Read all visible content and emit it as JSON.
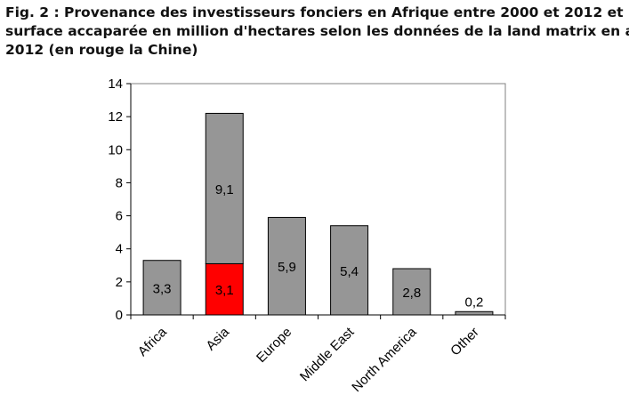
{
  "chart_data": {
    "type": "bar",
    "stacked": true,
    "title_lines": [
      "Fig. 2 : Provenance des investisseurs fonciers en Afrique entre 2000 et 2012 et",
      "surface accaparée en million d'hectares selon les données de la land matrix en avril",
      "2012 (en rouge la Chine)"
    ],
    "categories": [
      "Africa",
      "Asia",
      "Europe",
      "Middle East",
      "North America",
      "Other"
    ],
    "series": [
      {
        "values": [
          0,
          3.1,
          0,
          0,
          0,
          0
        ],
        "labels": [
          "",
          "3,1",
          "",
          "",
          "",
          ""
        ],
        "color": "#ff0000"
      },
      {
        "values": [
          3.3,
          9.1,
          5.9,
          5.4,
          2.8,
          0.2
        ],
        "labels": [
          "3,3",
          "9,1",
          "5,9",
          "5,4",
          "2,8",
          "0,2"
        ],
        "color": "#969696"
      }
    ],
    "ylim": [
      0,
      14
    ],
    "yticks": [
      "0",
      "2",
      "4",
      "6",
      "8",
      "10",
      "12",
      "14"
    ],
    "ytick_values": [
      0,
      2,
      4,
      6,
      8,
      10,
      12,
      14
    ],
    "gridlines": false,
    "legend": false
  }
}
